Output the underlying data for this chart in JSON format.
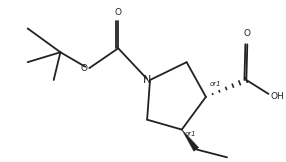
{
  "bg_color": "#ffffff",
  "line_color": "#222222",
  "line_width": 1.3,
  "font_size": 6.5,
  "fig_width": 2.86,
  "fig_height": 1.62,
  "dpi": 100,
  "xlim": [
    0,
    10
  ],
  "ylim": [
    0,
    5.66
  ]
}
